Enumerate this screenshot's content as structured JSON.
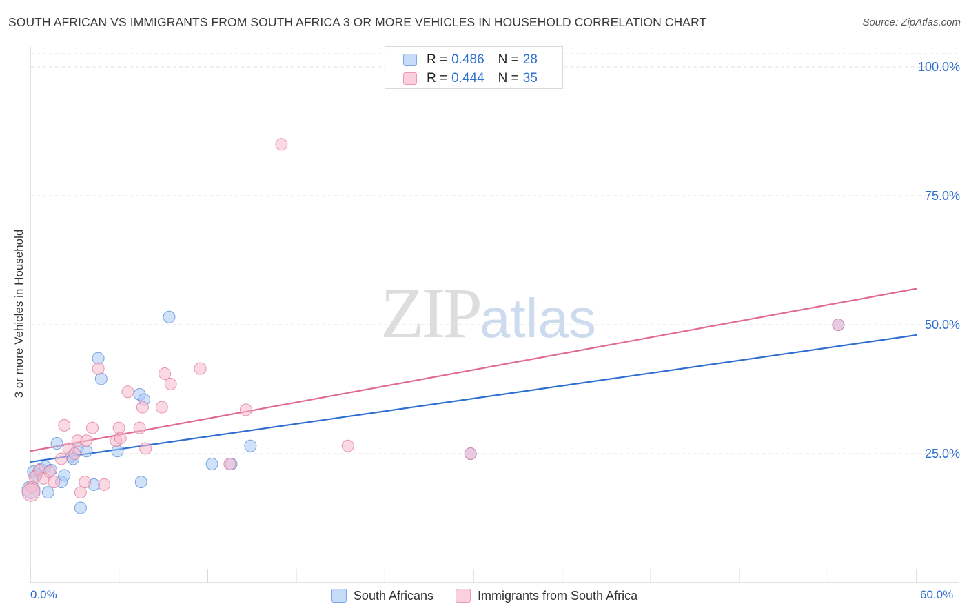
{
  "header": {
    "title": "SOUTH AFRICAN VS IMMIGRANTS FROM SOUTH AFRICA 3 OR MORE VEHICLES IN HOUSEHOLD CORRELATION CHART",
    "source": "Source: ZipAtlas.com"
  },
  "watermark": {
    "zip": "ZIP",
    "atlas": "atlas"
  },
  "legend_top": {
    "rows": [
      {
        "r_label": "R =",
        "r_value": "0.486",
        "n_label": "N =",
        "n_value": "28",
        "color": "#a9c8f5"
      },
      {
        "r_label": "R =",
        "r_value": "0.444",
        "n_label": "N =",
        "n_value": "35",
        "color": "#f7b9cc"
      }
    ]
  },
  "legend_bottom": {
    "items": [
      {
        "label": "South Africans",
        "color": "#a9c8f5"
      },
      {
        "label": "Immigrants from South Africa",
        "color": "#f7b9cc"
      }
    ]
  },
  "chart_data": {
    "type": "scatter",
    "title": "SOUTH AFRICAN VS IMMIGRANTS FROM SOUTH AFRICA 3 OR MORE VEHICLES IN HOUSEHOLD CORRELATION CHART",
    "xlabel": "",
    "ylabel": "3 or more Vehicles in Household",
    "xlim": [
      0,
      60
    ],
    "ylim": [
      0,
      105
    ],
    "x_tick_labels": [
      "0.0%",
      "60.0%"
    ],
    "y_ticks": [
      25,
      50,
      75,
      100
    ],
    "y_tick_labels": [
      "25.0%",
      "50.0%",
      "75.0%",
      "100.0%"
    ],
    "grid": true,
    "series": [
      {
        "name": "South Africans",
        "color": "#a9c8f5",
        "stroke": "#5b8fd6",
        "line_color": "#2f6fd1",
        "trend": {
          "x": [
            0,
            60
          ],
          "y": [
            23.4,
            48.0
          ]
        },
        "points": [
          [
            0.2,
            21.5
          ],
          [
            0.4,
            20.8
          ],
          [
            0.7,
            22.0
          ],
          [
            1.0,
            22.5
          ],
          [
            1.2,
            17.5
          ],
          [
            1.4,
            21.8
          ],
          [
            1.8,
            27.0
          ],
          [
            2.1,
            19.5
          ],
          [
            2.3,
            20.8
          ],
          [
            2.8,
            24.5
          ],
          [
            2.9,
            24.0
          ],
          [
            3.2,
            26.0
          ],
          [
            3.4,
            14.5
          ],
          [
            3.8,
            25.5
          ],
          [
            4.3,
            19.0
          ],
          [
            4.6,
            43.5
          ],
          [
            4.8,
            39.5
          ],
          [
            5.9,
            25.5
          ],
          [
            7.4,
            36.5
          ],
          [
            7.5,
            19.5
          ],
          [
            7.7,
            35.5
          ],
          [
            9.4,
            51.5
          ],
          [
            12.3,
            23.0
          ],
          [
            13.6,
            23.0
          ],
          [
            14.9,
            26.5
          ],
          [
            29.8,
            25.0
          ],
          [
            54.7,
            50.0
          ],
          [
            0.05,
            18.0
          ]
        ]
      },
      {
        "name": "Immigrants from South Africa",
        "color": "#f7b9cc",
        "stroke": "#e07ea0",
        "line_color": "#e06a93",
        "trend": {
          "x": [
            0,
            60
          ],
          "y": [
            25.5,
            57.0
          ]
        },
        "points": [
          [
            0.1,
            18.5
          ],
          [
            0.3,
            20.5
          ],
          [
            0.6,
            21.8
          ],
          [
            0.9,
            20.2
          ],
          [
            1.3,
            21.5
          ],
          [
            1.6,
            19.5
          ],
          [
            2.1,
            24.0
          ],
          [
            2.3,
            30.5
          ],
          [
            2.6,
            26.0
          ],
          [
            3.0,
            25.0
          ],
          [
            3.2,
            27.5
          ],
          [
            3.4,
            17.5
          ],
          [
            3.7,
            19.5
          ],
          [
            3.8,
            27.5
          ],
          [
            4.2,
            30.0
          ],
          [
            4.6,
            41.5
          ],
          [
            5.0,
            19.0
          ],
          [
            5.8,
            27.5
          ],
          [
            6.0,
            30.0
          ],
          [
            6.1,
            28.0
          ],
          [
            6.6,
            37.0
          ],
          [
            7.4,
            30.0
          ],
          [
            7.6,
            34.0
          ],
          [
            7.8,
            26.0
          ],
          [
            8.9,
            34.0
          ],
          [
            9.1,
            40.5
          ],
          [
            9.5,
            38.5
          ],
          [
            11.5,
            41.5
          ],
          [
            13.5,
            23.0
          ],
          [
            14.6,
            33.5
          ],
          [
            17.0,
            85.0
          ],
          [
            21.5,
            26.5
          ],
          [
            29.8,
            25.0
          ],
          [
            54.7,
            50.0
          ],
          [
            0.05,
            17.5
          ]
        ]
      }
    ]
  }
}
